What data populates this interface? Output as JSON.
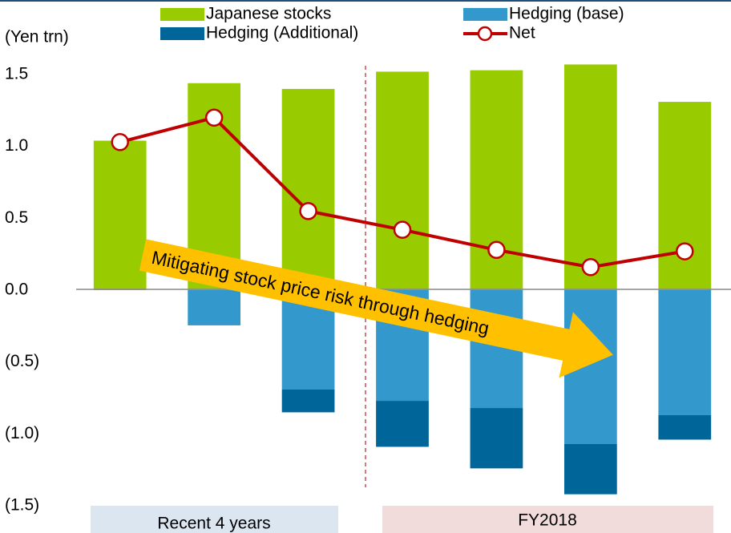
{
  "chart_data": {
    "type": "bar",
    "ylabel": "(Yen trn)",
    "categories": [
      null,
      null,
      null,
      null,
      null,
      null,
      null
    ],
    "series": [
      {
        "name": "Japanese stocks",
        "color": "#99cc00",
        "values": [
          1.04,
          1.44,
          1.4,
          1.52,
          1.53,
          1.57,
          1.31
        ]
      },
      {
        "name": "Hedging (base)",
        "color": "#3399cc",
        "values": [
          0,
          -0.245,
          -0.69,
          -0.77,
          -0.82,
          -1.07,
          -0.87
        ]
      },
      {
        "name": "Hedging (Additional)",
        "color": "#006699",
        "values": [
          0,
          0,
          -0.16,
          -0.32,
          -0.42,
          -0.35,
          -0.17
        ]
      },
      {
        "name": "Net",
        "type": "line",
        "color": "#c00000",
        "values": [
          1.03,
          1.2,
          0.55,
          0.42,
          0.28,
          0.16,
          0.27
        ]
      }
    ],
    "ylim": [
      -1.5,
      1.5
    ],
    "yticks": [
      1.5,
      {
        "value": 1.0,
        "label": "1.0"
      },
      0.5,
      {
        "value": 0,
        "label": "0.0"
      },
      {
        "value": -0.5,
        "label": "(0.5)"
      },
      {
        "value": -1.0,
        "label": "(1.0)"
      },
      {
        "value": -1.5,
        "label": "(1.5)"
      }
    ],
    "groups": [
      {
        "label": "Recent 4 years"
      },
      {
        "label": "FY2018"
      }
    ],
    "annotations": [
      "Mitigating stock price risk through hedging"
    ]
  }
}
